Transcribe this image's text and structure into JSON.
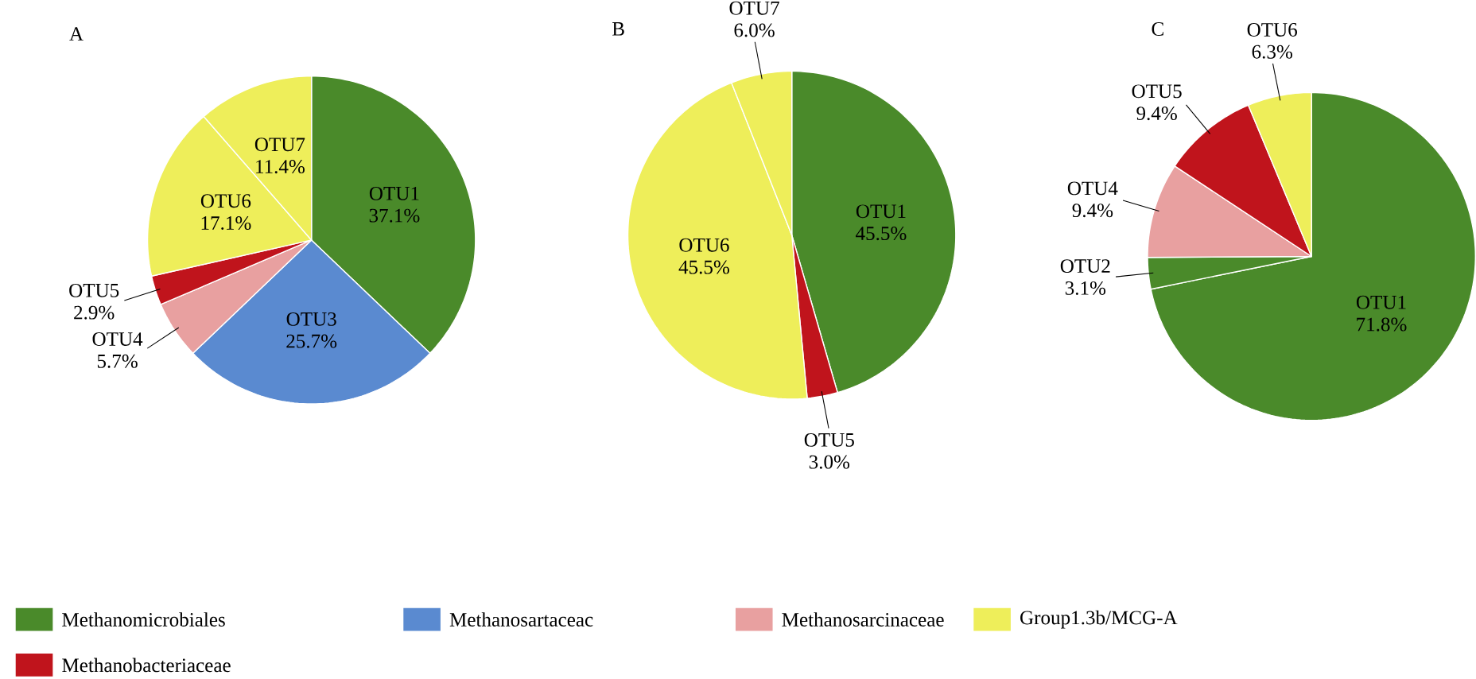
{
  "chart_data": [
    {
      "type": "pie",
      "title": "A",
      "categories": [
        "OTU1",
        "OTU3",
        "OTU4",
        "OTU5",
        "OTU6",
        "OTU7"
      ],
      "values": [
        37.1,
        25.7,
        5.7,
        2.9,
        17.1,
        11.4
      ],
      "value_labels": [
        "37.1%",
        "25.7%",
        "5.7%",
        "2.9%",
        "17.1%",
        "11.4%"
      ],
      "colors": [
        "#4a8a2a",
        "#5a8ad0",
        "#e8a0a0",
        "#c0141c",
        "#eeee5a",
        "#eeee5a"
      ]
    },
    {
      "type": "pie",
      "title": "B",
      "categories": [
        "OTU1",
        "OTU5",
        "OTU6",
        "OTU7"
      ],
      "values": [
        45.5,
        3.0,
        45.5,
        6.0
      ],
      "value_labels": [
        "45.5%",
        "3.0%",
        "45.5%",
        "6.0%"
      ],
      "colors": [
        "#4a8a2a",
        "#c0141c",
        "#eeee5a",
        "#eeee5a"
      ]
    },
    {
      "type": "pie",
      "title": "C",
      "categories": [
        "OTU1",
        "OTU2",
        "OTU4",
        "OTU5",
        "OTU6"
      ],
      "values": [
        71.8,
        3.1,
        9.4,
        9.4,
        6.3
      ],
      "value_labels": [
        "71.8%",
        "3.1%",
        "9.4%",
        "9.4%",
        "6.3%"
      ],
      "colors": [
        "#4a8a2a",
        "#4a8a2a",
        "#e8a0a0",
        "#c0141c",
        "#eeee5a"
      ]
    },
    {
      "type": "other",
      "legend": "bottom",
      "series": [
        {
          "name": "Methanomicrobiales",
          "color": "#4a8a2a"
        },
        {
          "name": "Methanosartaceac",
          "color": "#5a8ad0"
        },
        {
          "name": "Methanosarcinaceae",
          "color": "#e8a0a0"
        },
        {
          "name": "Group1.3b/MCG-A",
          "color": "#eeee5a"
        },
        {
          "name": "Methanobacteriaceae",
          "color": "#c0141c"
        }
      ]
    }
  ]
}
